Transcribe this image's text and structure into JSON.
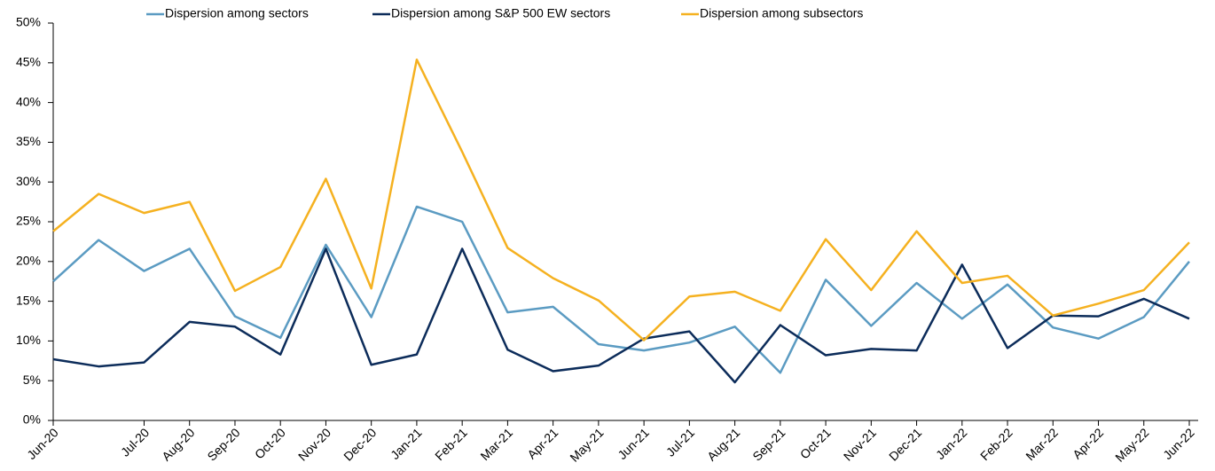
{
  "chart_data": {
    "type": "line",
    "categories": [
      "Jun-20",
      null,
      "Jul-20",
      "Aug-20",
      "Sep-20",
      "Oct-20",
      "Nov-20",
      "Dec-20",
      "Jan-21",
      "Feb-21",
      "Mar-21",
      "Apr-21",
      "May-21",
      "Jun-21",
      "Jul-21",
      "Aug-21",
      "Sep-21",
      "Oct-21",
      "Nov-21",
      "Dec-21",
      "Jan-22",
      "Feb-22",
      "Mar-22",
      "Apr-22",
      "May-22",
      "Jun-22"
    ],
    "series": [
      {
        "name": "Dispersion among sectors",
        "color": "#5b9bc2",
        "values": [
          17.5,
          22.7,
          18.8,
          21.6,
          13.1,
          10.4,
          22.1,
          13.0,
          26.9,
          25.0,
          13.6,
          14.3,
          9.6,
          8.8,
          9.8,
          11.8,
          6.0,
          17.7,
          11.9,
          17.3,
          12.8,
          17.1,
          11.7,
          10.3,
          13.0,
          20.0
        ]
      },
      {
        "name": "Dispersion among S&P 500 EW sectors",
        "color": "#0c2c5a",
        "values": [
          7.7,
          6.8,
          7.3,
          12.4,
          11.8,
          8.3,
          21.6,
          7.0,
          8.3,
          21.6,
          8.9,
          6.2,
          6.9,
          10.3,
          11.2,
          4.8,
          12.0,
          8.2,
          9.0,
          8.8,
          19.6,
          9.1,
          13.2,
          13.1,
          15.3,
          12.8
        ]
      },
      {
        "name": "Dispersion among subsectors",
        "color": "#f5b120",
        "values": [
          23.8,
          28.5,
          26.1,
          27.5,
          16.3,
          19.3,
          30.4,
          16.6,
          45.4,
          33.8,
          21.7,
          17.9,
          15.1,
          10.1,
          15.6,
          16.2,
          13.8,
          22.8,
          16.4,
          23.8,
          17.3,
          18.2,
          13.2,
          14.7,
          16.4,
          22.4
        ]
      }
    ],
    "ylim": [
      0,
      50
    ],
    "yticks": [
      {
        "value": 0,
        "label": "0%"
      },
      {
        "value": 5,
        "label": "5%"
      },
      {
        "value": 10,
        "label": "10%"
      },
      {
        "value": 15,
        "label": "15%"
      },
      {
        "value": 20,
        "label": "20%"
      },
      {
        "value": 25,
        "label": "25%"
      },
      {
        "value": 30,
        "label": "30%"
      },
      {
        "value": 35,
        "label": "35%"
      },
      {
        "value": 40,
        "label": "40%"
      },
      {
        "value": 45,
        "label": "45%"
      },
      {
        "value": 50,
        "label": "50%"
      }
    ],
    "legend": "top"
  }
}
